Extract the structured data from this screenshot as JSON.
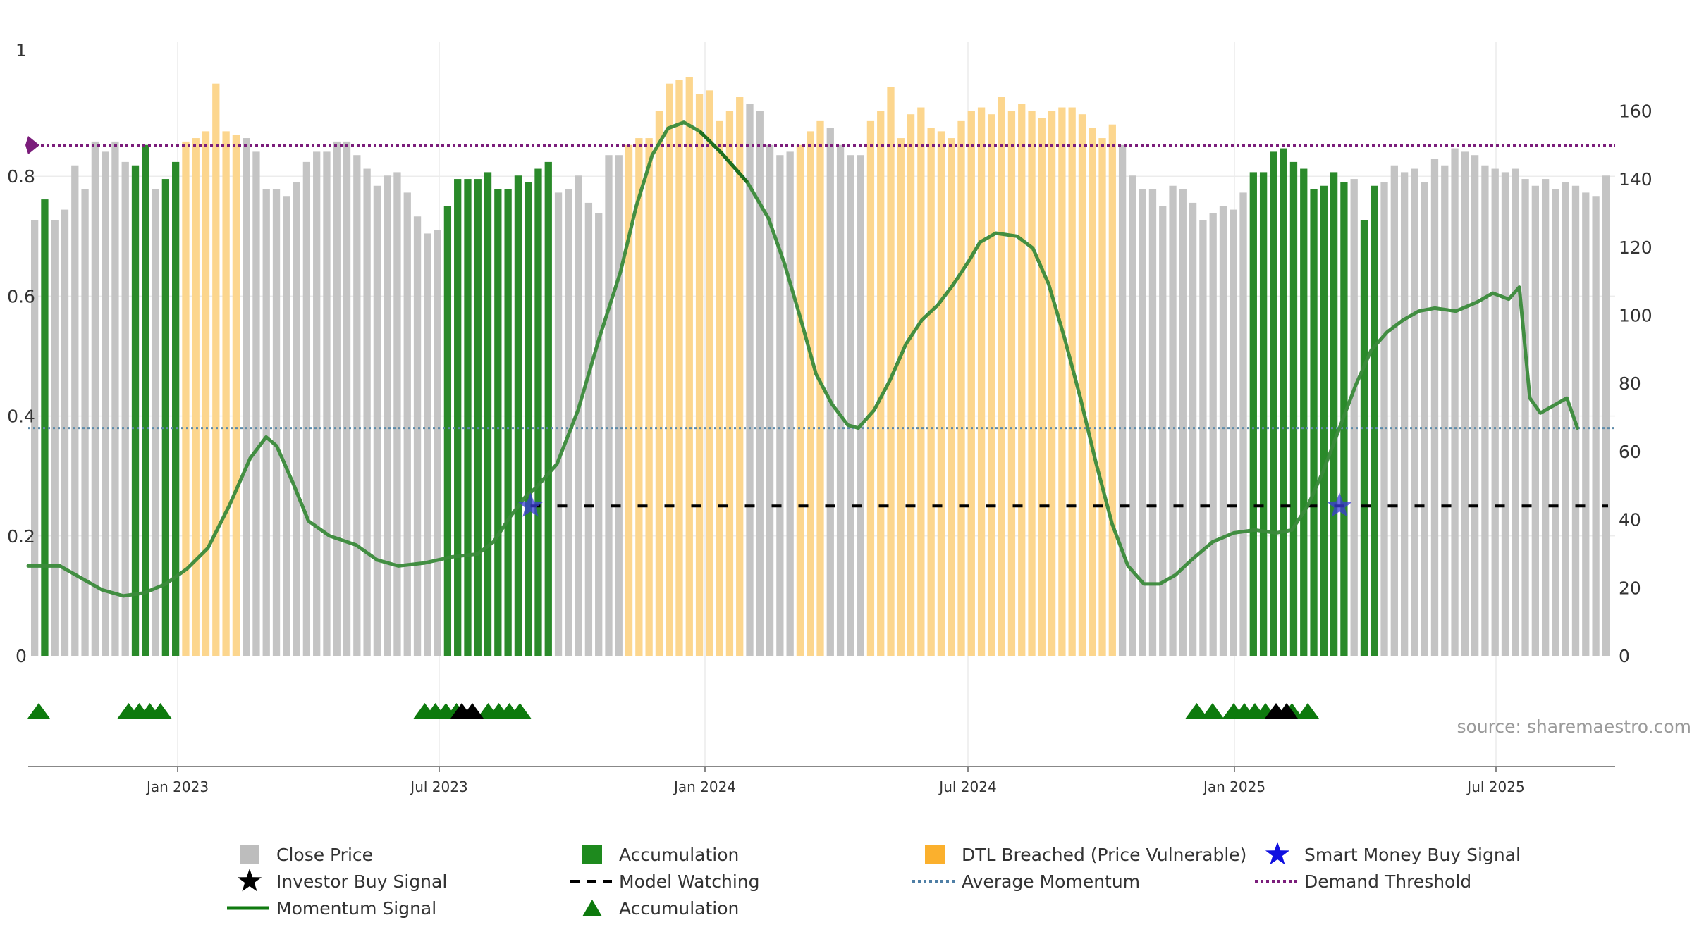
{
  "colors": {
    "close": "#c4c4c4",
    "accumulation": "#2a8a2a",
    "dtl": "#fcd68e",
    "momentum": "#3a8a3a",
    "momentum_dark": "#1f6f1f",
    "avg": "#5d8aa8",
    "demand": "#7b1d7b",
    "smart": "#3b3bd6",
    "investor": "#000000",
    "triangle": "#0d7a0d",
    "model": "#000000"
  },
  "chart_data": {
    "type": "bar",
    "x_ticks": [
      "Jan 2023",
      "Jul 2023",
      "Jan 2024",
      "Jul 2024",
      "Jan 2025",
      "Jul 2025"
    ],
    "left_ticks": [
      "0",
      "0.2",
      "0.4",
      "0.6",
      "0.8",
      "1"
    ],
    "right_ticks": [
      "0",
      "20",
      "40",
      "60",
      "80",
      "100",
      "120",
      "140",
      "160"
    ],
    "left_ylim": [
      0,
      1
    ],
    "right_ylim": [
      0,
      176
    ],
    "source": "source: sharemaestro.com",
    "close_state_codes": "CACCCCCCCCAACAADDDDDDCCCCCCCCCCCCCCCCCCCCAAAAAAAAAAACCCCCCCDDDDDDDDDDDDCCCCCDDDCCCCDDDDDDDDDDDDDDDDDDDDDDDDDCCCCCCCCCCCCCAAAAAAAAAACAACCCCCCCCCCCCCCCCCCCCCC",
    "close_values": [
      128,
      134,
      128,
      131,
      144,
      137,
      151,
      148,
      151,
      145,
      144,
      150,
      137,
      140,
      145,
      151,
      152,
      154,
      168,
      154,
      153,
      152,
      148,
      137,
      137,
      135,
      139,
      145,
      148,
      148,
      151,
      151,
      147,
      143,
      138,
      141,
      142,
      136,
      129,
      124,
      125,
      132,
      140,
      140,
      140,
      142,
      137,
      137,
      141,
      139,
      143,
      145,
      136,
      137,
      141,
      133,
      130,
      147,
      147,
      150,
      152,
      152,
      160,
      168,
      169,
      170,
      165,
      166,
      157,
      160,
      164,
      162,
      160,
      150,
      147,
      148,
      150,
      154,
      157,
      155,
      150,
      147,
      147,
      157,
      160,
      167,
      152,
      159,
      161,
      155,
      154,
      152,
      157,
      160,
      161,
      159,
      164,
      160,
      162,
      160,
      158,
      160,
      161,
      161,
      159,
      155,
      152,
      156,
      150,
      141,
      137,
      137,
      132,
      138,
      137,
      133,
      128,
      130,
      132,
      131,
      136,
      142,
      142,
      148,
      149,
      145,
      143,
      137,
      138,
      142,
      139,
      140,
      128,
      138,
      139,
      144,
      142,
      143,
      139,
      146,
      144,
      149,
      148,
      147,
      144,
      143,
      142,
      143,
      140,
      138,
      140,
      137,
      139,
      138,
      136,
      135,
      141
    ],
    "momentum_scale": "left axis",
    "momentum": [
      [
        0,
        0.15
      ],
      [
        6,
        0.15
      ],
      [
        10,
        0.13
      ],
      [
        14,
        0.11
      ],
      [
        18,
        0.1
      ],
      [
        22,
        0.105
      ],
      [
        26,
        0.12
      ],
      [
        30,
        0.145
      ],
      [
        34,
        0.18
      ],
      [
        38,
        0.25
      ],
      [
        42,
        0.33
      ],
      [
        45,
        0.365
      ],
      [
        47,
        0.35
      ],
      [
        50,
        0.29
      ],
      [
        53,
        0.225
      ],
      [
        57,
        0.2
      ],
      [
        62,
        0.185
      ],
      [
        66,
        0.16
      ],
      [
        70,
        0.15
      ],
      [
        75,
        0.155
      ],
      [
        80,
        0.165
      ],
      [
        85,
        0.17
      ],
      [
        88,
        0.19
      ],
      [
        91,
        0.23
      ],
      [
        94,
        0.265
      ],
      [
        96,
        0.28
      ],
      [
        100,
        0.32
      ],
      [
        104,
        0.41
      ],
      [
        108,
        0.53
      ],
      [
        112,
        0.64
      ],
      [
        115,
        0.75
      ],
      [
        118,
        0.835
      ],
      [
        121,
        0.88
      ],
      [
        124,
        0.89
      ],
      [
        127,
        0.875
      ],
      [
        131,
        0.84
      ],
      [
        136,
        0.79
      ],
      [
        140,
        0.73
      ],
      [
        143,
        0.655
      ],
      [
        146,
        0.565
      ],
      [
        149,
        0.47
      ],
      [
        152,
        0.42
      ],
      [
        155,
        0.385
      ],
      [
        157,
        0.38
      ],
      [
        160,
        0.41
      ],
      [
        163,
        0.46
      ],
      [
        166,
        0.52
      ],
      [
        169,
        0.56
      ],
      [
        172,
        0.585
      ],
      [
        175,
        0.62
      ],
      [
        178,
        0.66
      ],
      [
        180,
        0.69
      ],
      [
        183,
        0.705
      ],
      [
        187,
        0.7
      ],
      [
        190,
        0.68
      ],
      [
        193,
        0.62
      ],
      [
        196,
        0.53
      ],
      [
        199,
        0.43
      ],
      [
        202,
        0.32
      ],
      [
        205,
        0.22
      ],
      [
        208,
        0.15
      ],
      [
        211,
        0.12
      ],
      [
        214,
        0.12
      ],
      [
        217,
        0.135
      ],
      [
        220,
        0.16
      ],
      [
        224,
        0.19
      ],
      [
        228,
        0.205
      ],
      [
        232,
        0.21
      ],
      [
        236,
        0.205
      ],
      [
        239,
        0.21
      ],
      [
        242,
        0.25
      ],
      [
        245,
        0.31
      ],
      [
        248,
        0.38
      ],
      [
        251,
        0.45
      ],
      [
        254,
        0.51
      ],
      [
        257,
        0.54
      ],
      [
        260,
        0.56
      ],
      [
        263,
        0.575
      ],
      [
        266,
        0.58
      ],
      [
        270,
        0.575
      ],
      [
        274,
        0.59
      ],
      [
        277,
        0.605
      ],
      [
        280,
        0.595
      ],
      [
        282,
        0.615
      ],
      [
        284,
        0.43
      ],
      [
        286,
        0.405
      ],
      [
        289,
        0.42
      ],
      [
        291,
        0.43
      ],
      [
        293,
        0.38
      ]
    ],
    "momentum_dark_segment": [
      127,
      136
    ],
    "average_momentum": 0.38,
    "demand_threshold": 0.852,
    "model_watching": [
      [
        95,
        0.25
      ],
      [
        252,
        0.25
      ]
    ],
    "smart_money_buy": [
      [
        95,
        0.25
      ],
      [
        248,
        0.25
      ]
    ],
    "accumulation_triangles": [
      2,
      19,
      21,
      23,
      25,
      75,
      77,
      79,
      81,
      87,
      89,
      91,
      93,
      221,
      224,
      228,
      230,
      232,
      234,
      239,
      242
    ],
    "investor_triangles": [
      82,
      84,
      236,
      238
    ],
    "demand_threshold_marker": "diamond"
  },
  "legend": [
    {
      "label": "Close Price",
      "icon": "grey-square"
    },
    {
      "label": "Accumulation",
      "icon": "green-square"
    },
    {
      "label": "DTL Breached (Price Vulnerable)",
      "icon": "orange-square"
    },
    {
      "label": "Smart Money Buy Signal",
      "icon": "blue-star"
    },
    {
      "label": "Investor Buy Signal",
      "icon": "black-star"
    },
    {
      "label": "Model Watching",
      "icon": "black-dashed-line"
    },
    {
      "label": "Average Momentum",
      "icon": "blue-dotted-line"
    },
    {
      "label": "Demand Threshold",
      "icon": "purple-dotted-line"
    },
    {
      "label": "Momentum Signal",
      "icon": "green-line"
    },
    {
      "label": "Accumulation",
      "icon": "green-triangle"
    }
  ]
}
